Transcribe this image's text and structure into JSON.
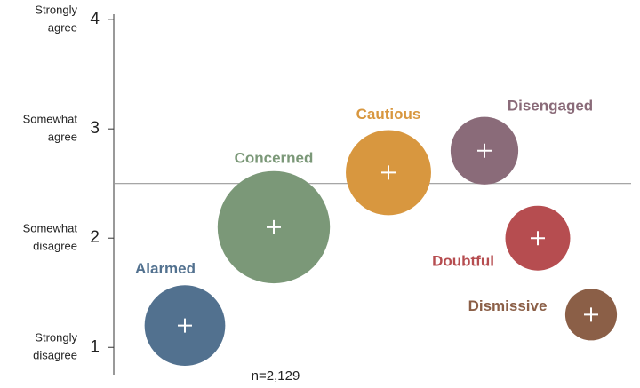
{
  "chart_data": {
    "type": "bubble",
    "categories": [
      "Alarmed",
      "Concerned",
      "Cautious",
      "Disengaged",
      "Doubtful",
      "Dismissive"
    ],
    "values": [
      1.2,
      2.1,
      2.6,
      2.8,
      2.0,
      1.3
    ],
    "sizes": [
      17,
      33,
      19,
      12,
      11,
      7
    ],
    "colors": [
      "#52718f",
      "#7b9878",
      "#d8973f",
      "#8a6b79",
      "#b64d50",
      "#8b5f47"
    ],
    "ylim": [
      0.75,
      4.05
    ],
    "yticks": [
      1,
      2,
      3,
      4
    ],
    "ytick_descriptions": [
      [
        "Strongly",
        "disagree"
      ],
      [
        "Somewhat",
        "disagree"
      ],
      [
        "Somewhat",
        "agree"
      ],
      [
        "Strongly",
        "agree"
      ]
    ],
    "reference_line": 2.5,
    "note": "n=2,129"
  }
}
